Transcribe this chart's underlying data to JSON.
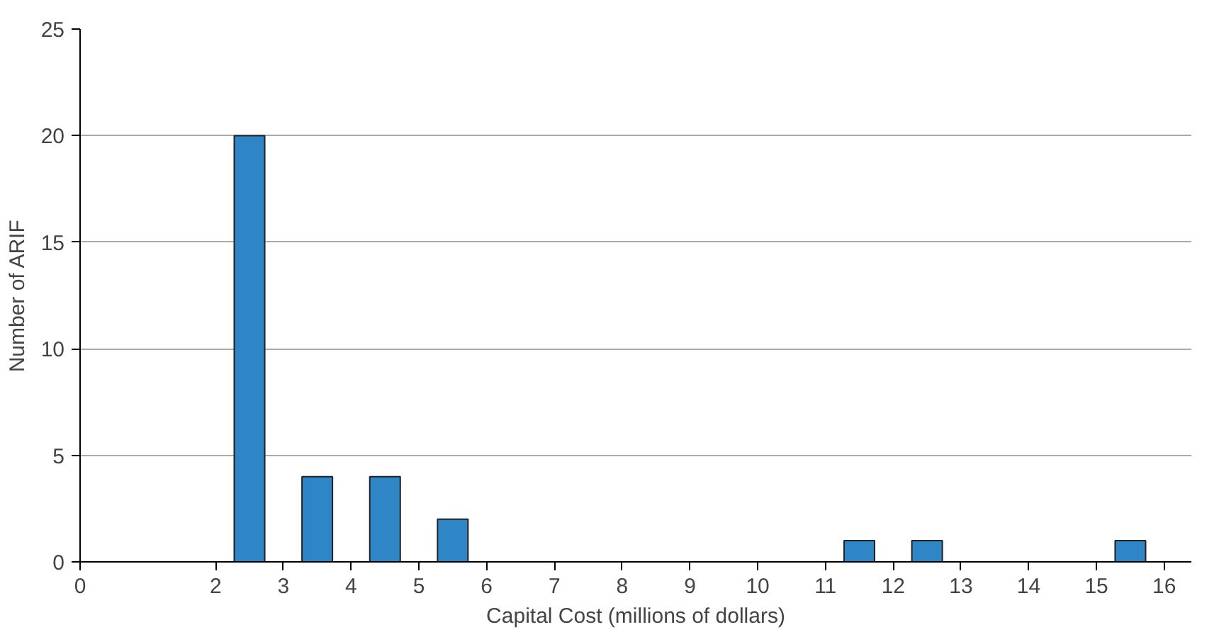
{
  "chart_data": {
    "type": "bar",
    "xlabel": "Capital Cost (millions of dollars)",
    "ylabel": "Number of ARIF",
    "x": [
      2.5,
      3.5,
      4.5,
      5.5,
      11.5,
      12.5,
      15.5
    ],
    "values": [
      20,
      4,
      4,
      2,
      1,
      1,
      1
    ],
    "color": "#2f86c6",
    "xlim": [
      0,
      16.4
    ],
    "xticks": [
      0,
      2,
      3,
      4,
      5,
      6,
      7,
      8,
      9,
      10,
      11,
      12,
      13,
      14,
      15,
      16
    ],
    "ylim": [
      0,
      25
    ],
    "yticks": [
      0,
      5,
      10,
      15,
      20,
      25
    ],
    "grid": "y"
  }
}
